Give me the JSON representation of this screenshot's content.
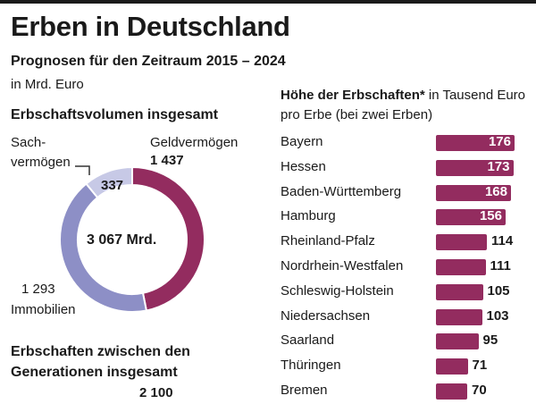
{
  "header": {
    "title": "Erben in Deutschland",
    "subtitle": "Prognosen für den Zeitraum 2015 – 2024",
    "unit": "in Mrd. Euro"
  },
  "colors": {
    "geld": "#932c5f",
    "immobilien": "#8d8fc6",
    "sach": "#c7c9e6",
    "bar": "#932c5f"
  },
  "chart_data": [
    {
      "type": "pie",
      "title": "Erbschaftsvolumen insgesamt",
      "center_label": "3 067 Mrd.",
      "slices": [
        {
          "label": "Geldvermögen",
          "value": 1437,
          "display": "1 437"
        },
        {
          "label": "Immobilien",
          "value": 1293,
          "display": "1 293"
        },
        {
          "label_line1": "Sach-",
          "label_line2": "vermögen",
          "label": "Sachvermögen",
          "value": 337,
          "display": "337"
        }
      ]
    },
    {
      "type": "bar",
      "title_bold": "Höhe der Erbschaften*",
      "title_rest": " in Tausend Euro pro Erbe (bei zwei Erben)",
      "categories": [
        "Bayern",
        "Hessen",
        "Baden-Württemberg",
        "Hamburg",
        "Rheinland-Pfalz",
        "Nordrhein-Westfalen",
        "Schleswig-Holstein",
        "Niedersachsen",
        "Saarland",
        "Thüringen",
        "Bremen"
      ],
      "values": [
        176,
        173,
        168,
        156,
        114,
        111,
        105,
        103,
        95,
        71,
        70
      ]
    }
  ],
  "generations": {
    "heading": "Erbschaften zwischen den Generationen insgesamt",
    "value": "2 100"
  }
}
